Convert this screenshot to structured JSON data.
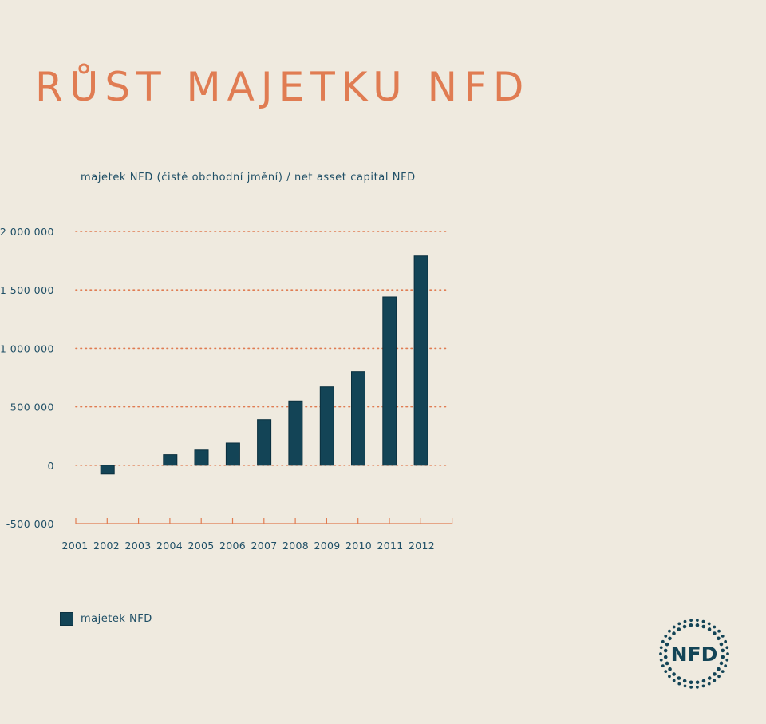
{
  "page": {
    "title": "RŮST MAJETKU NFD",
    "subtitle": "majetek NFD (čisté obchodní jmění) / net asset capital NFD"
  },
  "legend": {
    "label": "majetek NFD"
  },
  "logo": {
    "text": "NFD"
  },
  "colors": {
    "background": "#efeadf",
    "accent": "#e07c52",
    "bar": "#134456",
    "text": "#1f4f66"
  },
  "chart_data": {
    "type": "bar",
    "title": "RŮST MAJETKU NFD",
    "subtitle": "majetek NFD (čisté obchodní jmění) / net asset capital NFD",
    "xlabel": "",
    "ylabel": "",
    "categories": [
      "2001",
      "2002",
      "2003",
      "2004",
      "2005",
      "2006",
      "2007",
      "2008",
      "2009",
      "2010",
      "2011",
      "2012"
    ],
    "series": [
      {
        "name": "majetek NFD",
        "values": [
          -75000,
          null,
          90000,
          130000,
          190000,
          390000,
          550000,
          670000,
          800000,
          1440000,
          1790000,
          null
        ]
      }
    ],
    "yticks": [
      {
        "value": 2000000,
        "label": "2 000 000"
      },
      {
        "value": 1500000,
        "label": "1 500 000"
      },
      {
        "value": 1000000,
        "label": "1 000 000"
      },
      {
        "value": 500000,
        "label": "500 000"
      },
      {
        "value": 0,
        "label": "0"
      },
      {
        "value": -500000,
        "label": "-500 000"
      }
    ],
    "ylim": [
      -500000,
      2000000
    ],
    "grid": true,
    "legend_position": "bottom-left"
  }
}
